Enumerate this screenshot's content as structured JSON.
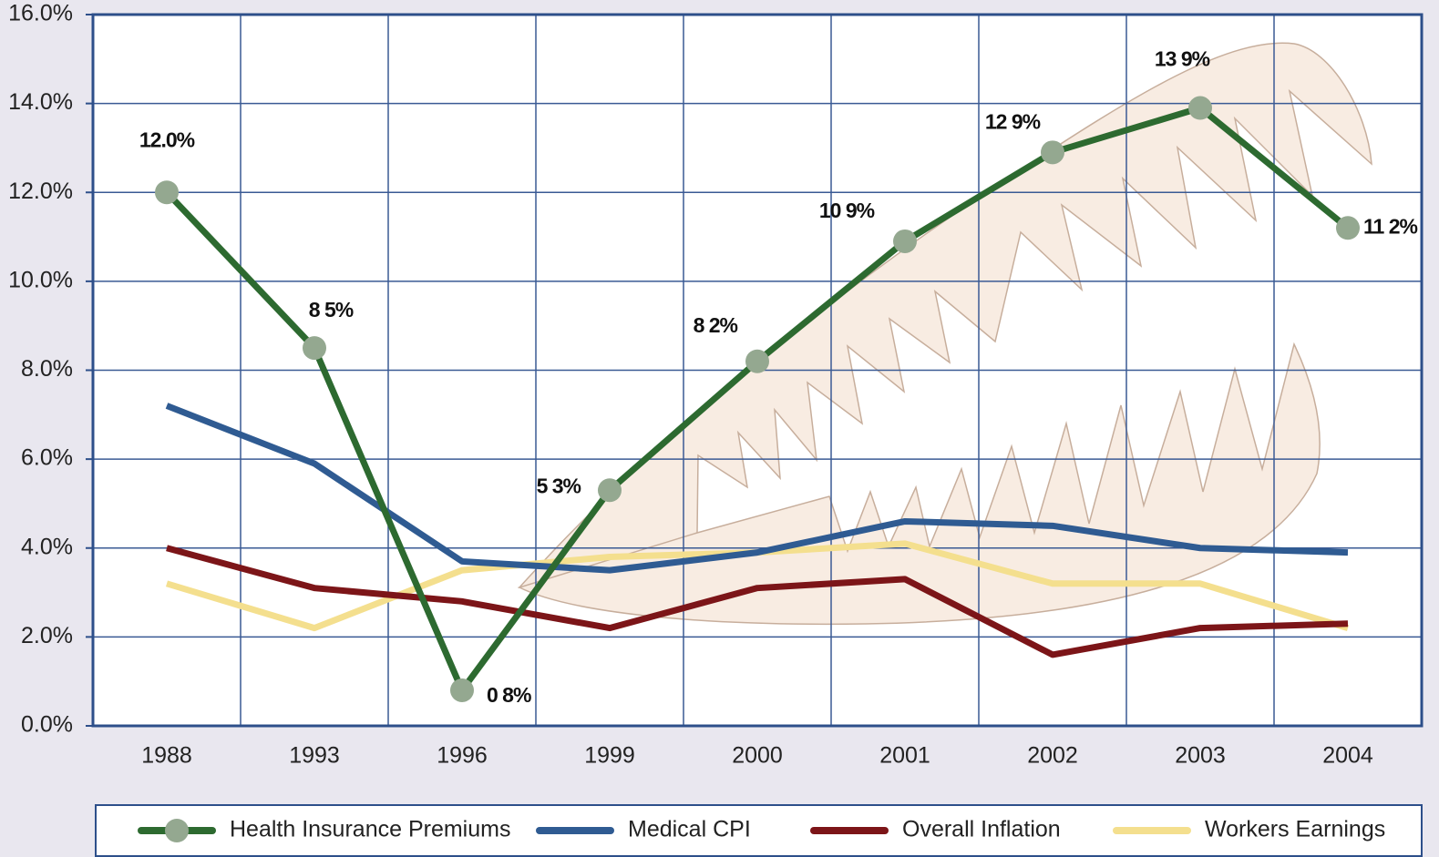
{
  "chart_data": {
    "type": "line",
    "categories": [
      "1988",
      "1993",
      "1996",
      "1999",
      "2000",
      "2001",
      "2002",
      "2003",
      "2004"
    ],
    "series": [
      {
        "name": "Health Insurance Premiums",
        "color": "#2d6a30",
        "markers": true,
        "marker_color": "#94a890",
        "values": [
          12.0,
          8.5,
          0.8,
          5.3,
          8.2,
          10.9,
          12.9,
          13.9,
          11.2
        ],
        "value_labels": [
          "12.0%",
          "8 5%",
          "0 8%",
          "5 3%",
          "8 2%",
          "10 9%",
          "12 9%",
          "13 9%",
          "11 2%"
        ]
      },
      {
        "name": "Medical CPI",
        "color": "#2f5b92",
        "values": [
          7.2,
          5.9,
          3.7,
          3.5,
          3.9,
          4.6,
          4.5,
          4.0,
          3.9
        ]
      },
      {
        "name": "Overall Inflation",
        "color": "#7c1518",
        "values": [
          4.0,
          3.1,
          2.8,
          2.2,
          3.1,
          3.3,
          1.6,
          2.2,
          2.3
        ]
      },
      {
        "name": "Workers Earnings",
        "color": "#f4df8e",
        "values": [
          3.2,
          2.2,
          3.5,
          3.8,
          3.9,
          4.1,
          3.2,
          3.2,
          2.2
        ]
      }
    ],
    "ylim": [
      0,
      16
    ],
    "yticks": [
      {
        "value": 0,
        "label": "0.0%"
      },
      {
        "value": 2,
        "label": "2.0%"
      },
      {
        "value": 4,
        "label": "4.0%"
      },
      {
        "value": 6,
        "label": "6.0%"
      },
      {
        "value": 8,
        "label": "8.0%"
      },
      {
        "value": 10,
        "label": "10.0%"
      },
      {
        "value": 12,
        "label": "12.0%"
      },
      {
        "value": 14,
        "label": "14.0%"
      },
      {
        "value": 16,
        "label": "16.0%"
      }
    ],
    "grid": true,
    "legend": "bottom"
  }
}
